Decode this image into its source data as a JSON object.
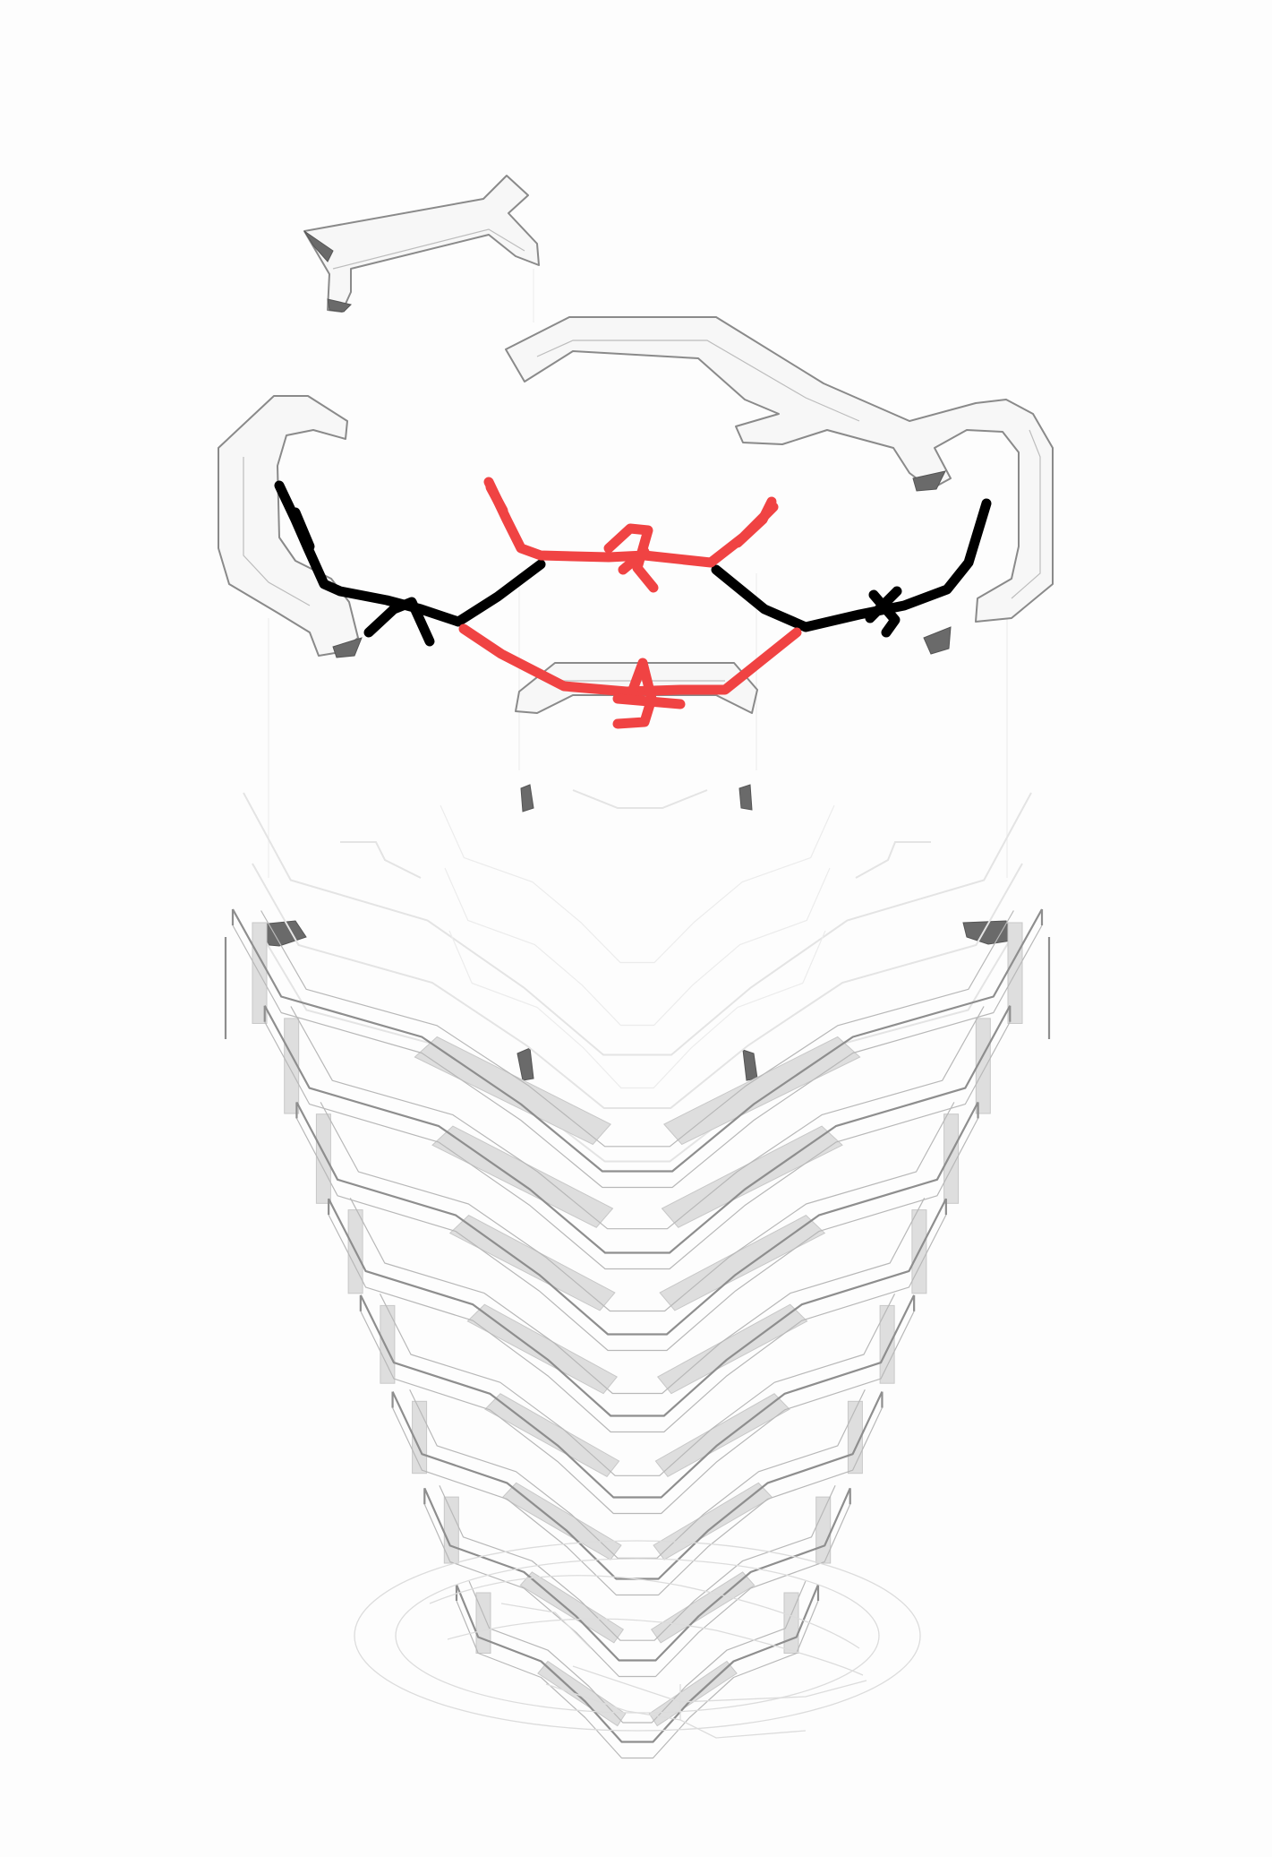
{
  "diagram": {
    "stroke_colors": {
      "model_outline": "#8a8a8a",
      "annotation_black": "#000000",
      "annotation_red": "#f04343",
      "shadow_fill": "#6a6a6a",
      "ghost_beam": "#dedede"
    },
    "structure_levels": 8
  }
}
